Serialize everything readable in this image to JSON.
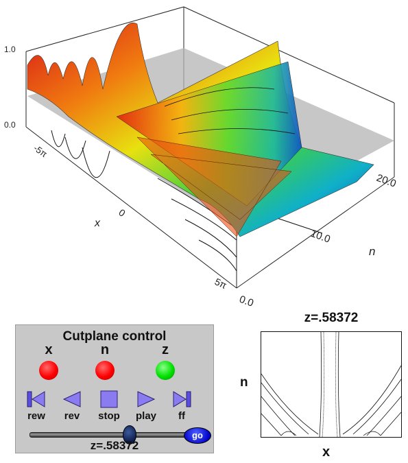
{
  "plot3d": {
    "z_ticks": [
      "1.0",
      "0.0"
    ],
    "x_ticks": [
      "-5π",
      "0",
      "5π"
    ],
    "x_label": "x",
    "n_ticks": [
      "0.0",
      "10.0",
      "20.0"
    ],
    "n_label": "n"
  },
  "control": {
    "title": "Cutplane control",
    "axes": [
      {
        "label": "x",
        "color": "#ff0000"
      },
      {
        "label": "n",
        "color": "#ff0000"
      },
      {
        "label": "z",
        "color": "#00e000"
      }
    ],
    "buttons": [
      {
        "label": "rew",
        "icon": "rewind-icon"
      },
      {
        "label": "rev",
        "icon": "reverse-icon"
      },
      {
        "label": "stop",
        "icon": "stop-icon"
      },
      {
        "label": "play",
        "icon": "play-icon"
      },
      {
        "label": "ff",
        "icon": "fast-forward-icon"
      }
    ],
    "slider_fraction": 0.63,
    "go_label": "go",
    "value_text": "z=.58372",
    "accent_color": "#8a7cf0"
  },
  "contour": {
    "title": "z=.58372",
    "xlabel": "x",
    "ylabel": "n"
  }
}
